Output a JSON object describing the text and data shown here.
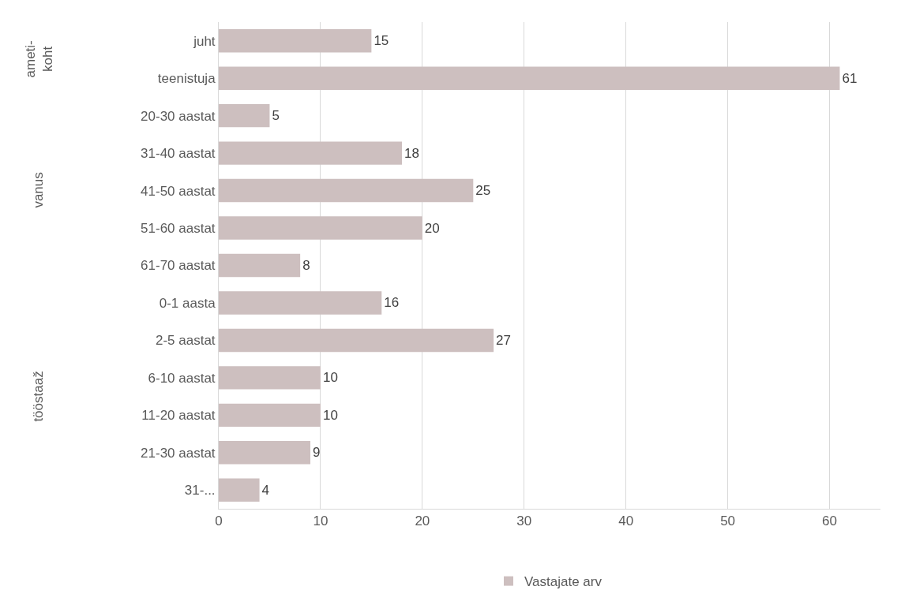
{
  "chart_data": {
    "type": "bar",
    "orientation": "horizontal",
    "categories": [
      "juht",
      "teenistuja",
      "20-30 aastat",
      "31-40 aastat",
      "41-50 aastat",
      "51-60 aastat",
      "61-70 aastat",
      "0-1 aasta",
      "2-5 aastat",
      "6-10 aastat",
      "11-20 aastat",
      "21-30 aastat",
      "31-..."
    ],
    "series": [
      {
        "name": "Vastajate arv",
        "color": "#cdbfbf",
        "values": [
          15,
          61,
          5,
          18,
          25,
          20,
          8,
          16,
          27,
          10,
          10,
          9,
          4
        ]
      }
    ],
    "xlim": [
      0,
      65
    ],
    "xticks": [
      0,
      10,
      20,
      30,
      40,
      50,
      60
    ],
    "grid": "x",
    "legend": "bottom",
    "data_labels": true,
    "annotations": [
      "ameti-\nkoht",
      "vanus",
      "tööstaaž"
    ]
  }
}
